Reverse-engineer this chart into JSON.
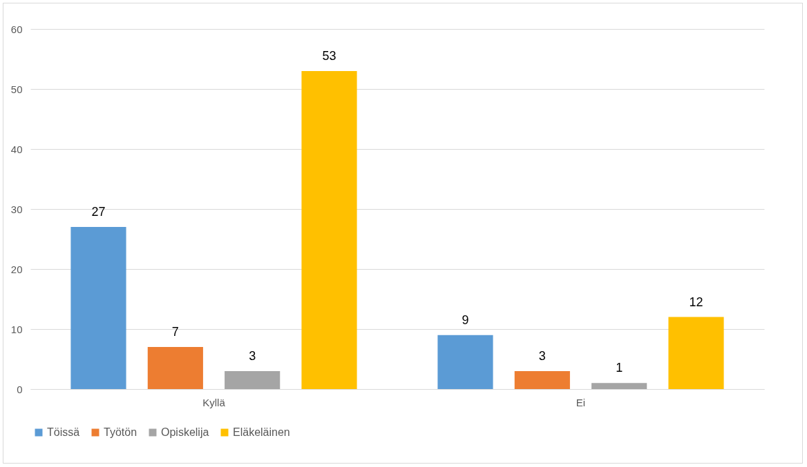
{
  "chart_data": {
    "type": "bar",
    "categories": [
      "Kyllä",
      "Ei"
    ],
    "series": [
      {
        "name": "Töissä",
        "color": "#5b9bd5",
        "values": [
          27,
          9
        ]
      },
      {
        "name": "Työtön",
        "color": "#ed7d31",
        "values": [
          7,
          3
        ]
      },
      {
        "name": "Opiskelija",
        "color": "#a5a5a5",
        "values": [
          3,
          1
        ]
      },
      {
        "name": "Eläkeläinen",
        "color": "#ffc000",
        "values": [
          53,
          12
        ]
      }
    ],
    "ylim": [
      0,
      60
    ],
    "yticks": [
      0,
      10,
      20,
      30,
      40,
      50,
      60
    ],
    "grid": "y",
    "legend": "bottom",
    "data_labels": true
  }
}
